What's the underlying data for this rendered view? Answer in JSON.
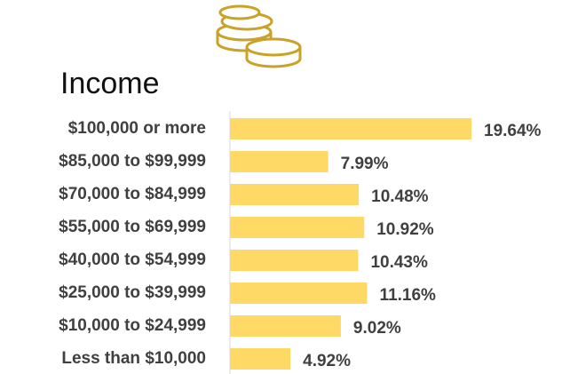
{
  "chart_data": {
    "type": "barh",
    "title": "Income",
    "categories": [
      "$100,000 or more",
      "$85,000 to $99,999",
      "$70,000 to $84,999",
      "$55,000 to $69,999",
      "$40,000 to $54,999",
      "$25,000 to $39,999",
      "$10,000 to $24,999",
      "Less than $10,000"
    ],
    "values": [
      19.64,
      7.99,
      10.48,
      10.92,
      10.43,
      11.16,
      9.02,
      4.92
    ],
    "value_labels": [
      "19.64%",
      "7.99%",
      "10.48%",
      "10.92%",
      "10.43%",
      "11.16%",
      "9.02%",
      "4.92%"
    ],
    "color": "#FFD966"
  }
}
